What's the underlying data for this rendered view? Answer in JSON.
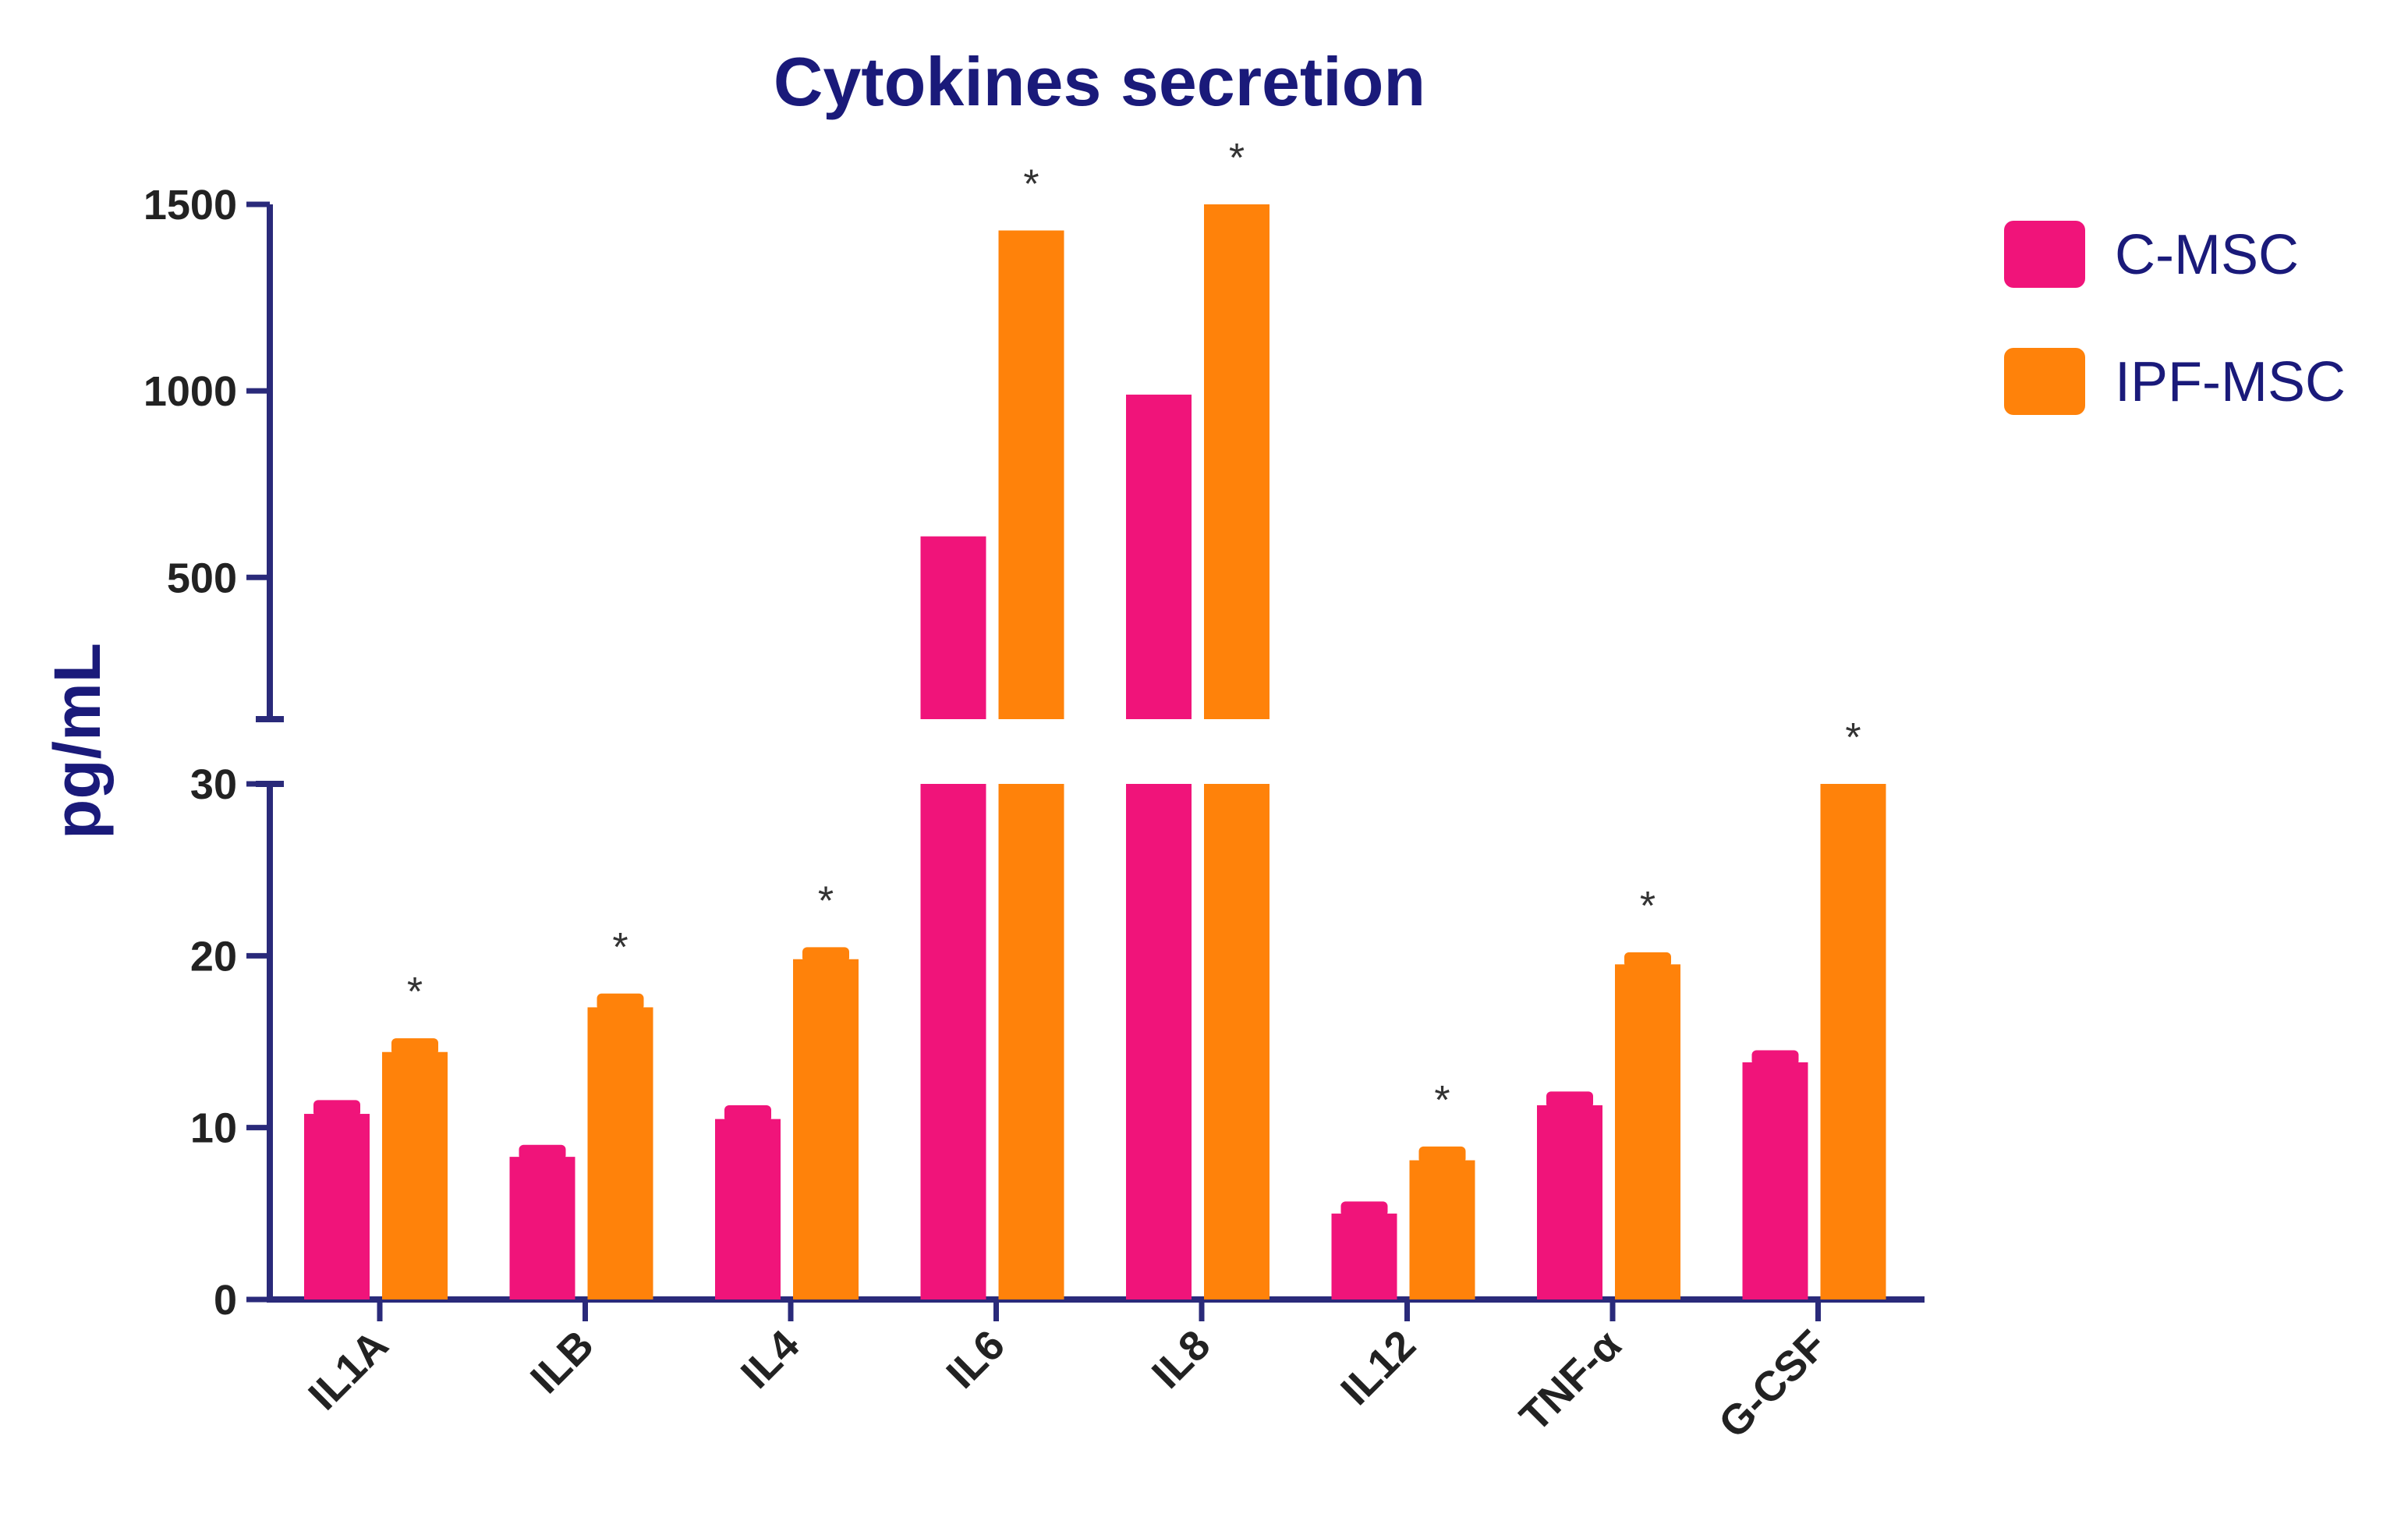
{
  "chart_data": {
    "type": "bar",
    "title": "Cytokines secretion",
    "ylabel": "pg/mL",
    "xlabel": "",
    "categories": [
      "IL1A",
      "ILB",
      "IL4",
      "IL6",
      "IL8",
      "IL12",
      "TNF-α",
      "G-CSF"
    ],
    "series": [
      {
        "name": "C-MSC",
        "color": "#f0147a",
        "values": [
          10.8,
          8.3,
          10.5,
          610,
          990,
          5.0,
          11.3,
          13.8
        ],
        "errors": [
          0.8,
          0.7,
          0.8,
          0,
          0,
          0.7,
          0.8,
          0.7
        ]
      },
      {
        "name": "IPF-MSC",
        "color": "#ff820a",
        "values": [
          14.4,
          17.0,
          19.8,
          1430,
          1500,
          8.1,
          19.5,
          30
        ],
        "errors": [
          0.8,
          0.8,
          0.7,
          0,
          0,
          0.8,
          0.7,
          0
        ]
      }
    ],
    "significance": [
      "*",
      "*",
      "*",
      "*",
      "*",
      "*",
      "*",
      "*"
    ],
    "y_axis": {
      "broken": true,
      "lower_segment": {
        "range": [
          0,
          30
        ],
        "ticks": [
          0,
          10,
          20,
          30
        ]
      },
      "upper_segment": {
        "range": [
          120,
          1500
        ],
        "ticks": [
          500,
          1000,
          1500
        ]
      }
    },
    "legend_position": "top-right",
    "axis_color": "#2a2a7a",
    "grid": false
  }
}
